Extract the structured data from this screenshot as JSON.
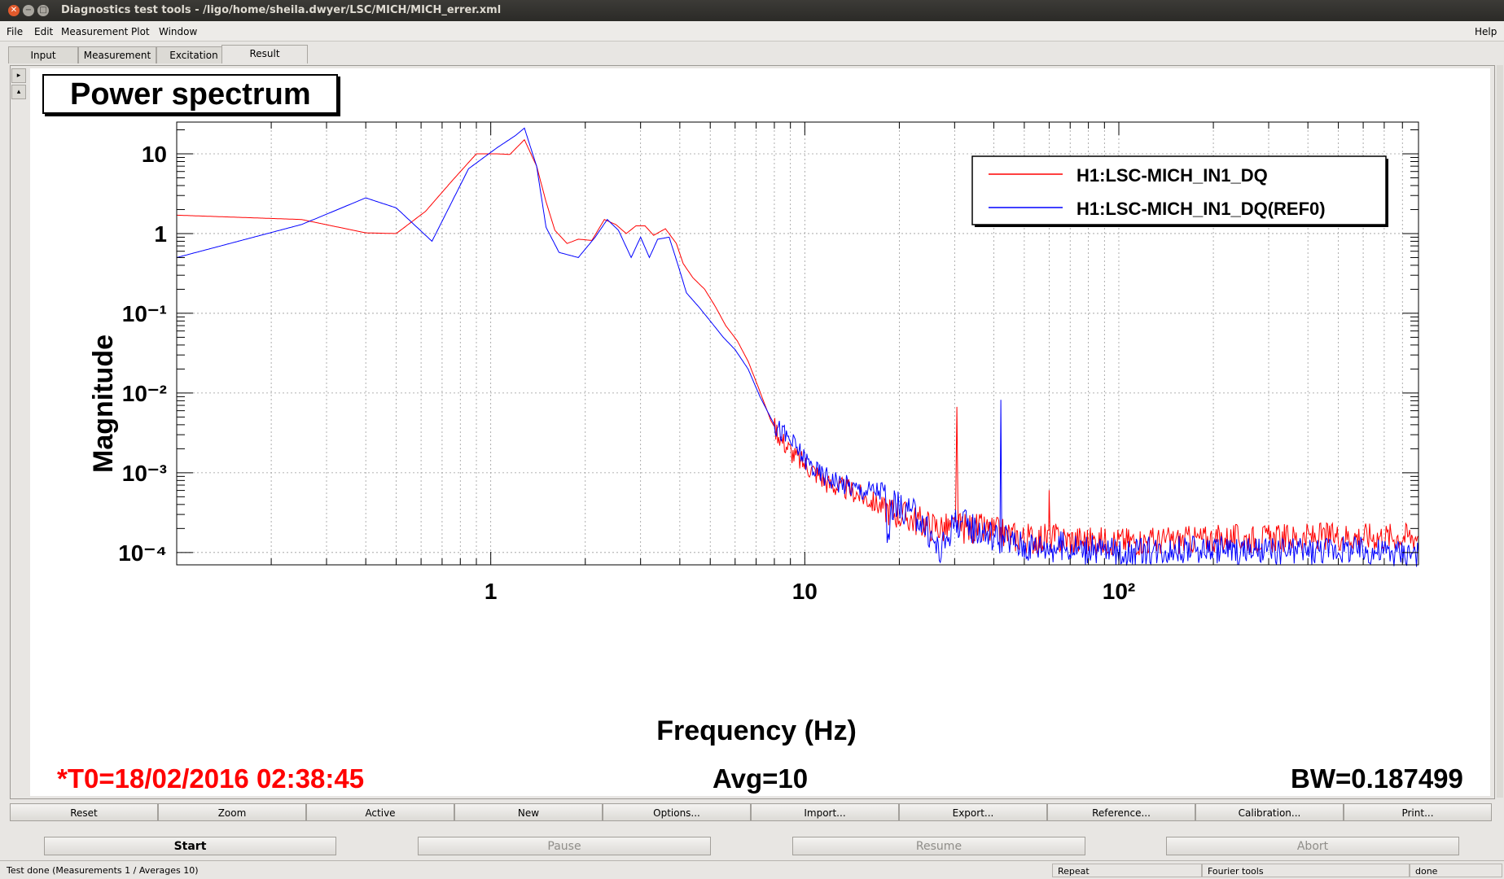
{
  "window": {
    "title": "Diagnostics test tools - /ligo/home/sheila.dwyer/LSC/MICH/MICH_errer.xml"
  },
  "menu": {
    "file": "File",
    "edit": "Edit",
    "measurement": "Measurement",
    "plot": "Plot",
    "window": "Window",
    "help": "Help"
  },
  "tabs": [
    "Input",
    "Measurement",
    "Excitation",
    "Result"
  ],
  "plot_panel": {
    "title": "Power spectrum",
    "footer": {
      "t0": "*T0=18/02/2016 02:38:45",
      "avg": "Avg=10",
      "bw": "BW=0.187499"
    }
  },
  "chart_data": {
    "type": "line",
    "xlabel": "Frequency (Hz)",
    "ylabel": "Magnitude",
    "xscale": "log",
    "yscale": "log",
    "xlim": [
      0.1,
      900
    ],
    "ylim": [
      7e-05,
      25
    ],
    "grid": true,
    "legend_position": "top-right",
    "x_tick_labels": [
      "1",
      "10",
      "10²"
    ],
    "y_tick_labels": [
      "10",
      "1",
      "10⁻¹",
      "10⁻²",
      "10⁻³",
      "10⁻⁴"
    ],
    "series": [
      {
        "name": "H1:LSC-MICH_IN1_DQ",
        "color": "#ff0000",
        "points": [
          [
            0.1,
            1.7
          ],
          [
            0.25,
            1.5
          ],
          [
            0.4,
            1.02
          ],
          [
            0.5,
            1.0
          ],
          [
            0.62,
            1.9
          ],
          [
            0.75,
            4.5
          ],
          [
            0.9,
            10
          ],
          [
            1.05,
            10
          ],
          [
            1.15,
            9.8
          ],
          [
            1.28,
            15
          ],
          [
            1.4,
            7
          ],
          [
            1.5,
            2.5
          ],
          [
            1.6,
            1.1
          ],
          [
            1.75,
            0.75
          ],
          [
            1.9,
            0.85
          ],
          [
            2.1,
            0.82
          ],
          [
            2.3,
            1.5
          ],
          [
            2.5,
            1.3
          ],
          [
            2.7,
            1.0
          ],
          [
            2.9,
            1.25
          ],
          [
            3.1,
            1.25
          ],
          [
            3.3,
            0.95
          ],
          [
            3.6,
            1.15
          ],
          [
            3.9,
            0.75
          ],
          [
            4.1,
            0.42
          ],
          [
            4.4,
            0.28
          ],
          [
            4.8,
            0.2
          ],
          [
            5.2,
            0.12
          ],
          [
            5.6,
            0.07
          ],
          [
            6.1,
            0.045
          ],
          [
            6.6,
            0.025
          ],
          [
            7.1,
            0.012
          ],
          [
            7.8,
            0.0045
          ],
          [
            8.5,
            0.0025
          ],
          [
            9.3,
            0.0016
          ],
          [
            10.5,
            0.0011
          ],
          [
            12,
            0.0007
          ],
          [
            14,
            0.0006
          ],
          [
            17,
            0.0004
          ],
          [
            20,
            0.0003
          ],
          [
            25,
            0.00022
          ],
          [
            28,
            0.0002
          ],
          [
            30.2,
            0.0002
          ],
          [
            30.5,
            0.009
          ],
          [
            30.8,
            0.0002
          ],
          [
            35,
            0.0002
          ],
          [
            40,
            0.00018
          ],
          [
            43,
            0.00017
          ],
          [
            50,
            0.00015
          ],
          [
            59.8,
            0.00015
          ],
          [
            60,
            0.0006
          ],
          [
            60.3,
            0.00015
          ],
          [
            80,
            0.00014
          ],
          [
            100,
            0.00014
          ],
          [
            150,
            0.00014
          ],
          [
            200,
            0.00015
          ],
          [
            300,
            0.00015
          ],
          [
            500,
            0.00016
          ],
          [
            700,
            0.00016
          ],
          [
            900,
            0.00016
          ]
        ]
      },
      {
        "name": "H1:LSC-MICH_IN1_DQ(REF0)",
        "color": "#0000ff",
        "points": [
          [
            0.1,
            0.5
          ],
          [
            0.25,
            1.3
          ],
          [
            0.4,
            2.8
          ],
          [
            0.5,
            2.1
          ],
          [
            0.65,
            0.8
          ],
          [
            0.85,
            6.5
          ],
          [
            1.05,
            12
          ],
          [
            1.2,
            17
          ],
          [
            1.28,
            21
          ],
          [
            1.4,
            7
          ],
          [
            1.5,
            1.2
          ],
          [
            1.65,
            0.58
          ],
          [
            1.9,
            0.5
          ],
          [
            2.15,
            0.9
          ],
          [
            2.35,
            1.5
          ],
          [
            2.55,
            1.1
          ],
          [
            2.8,
            0.5
          ],
          [
            3.0,
            0.9
          ],
          [
            3.2,
            0.5
          ],
          [
            3.4,
            0.85
          ],
          [
            3.7,
            0.9
          ],
          [
            3.95,
            0.4
          ],
          [
            4.2,
            0.18
          ],
          [
            4.6,
            0.12
          ],
          [
            5.0,
            0.08
          ],
          [
            5.5,
            0.05
          ],
          [
            6.0,
            0.035
          ],
          [
            6.6,
            0.02
          ],
          [
            7.2,
            0.009
          ],
          [
            8,
            0.004
          ],
          [
            9,
            0.0025
          ],
          [
            10,
            0.0015
          ],
          [
            11,
            0.001
          ],
          [
            13,
            0.00075
          ],
          [
            15,
            0.0006
          ],
          [
            18,
            0.0006
          ],
          [
            18.3,
            0.00012
          ],
          [
            19,
            0.0004
          ],
          [
            23,
            0.00028
          ],
          [
            27,
            0.0001
          ],
          [
            30,
            0.00025
          ],
          [
            35,
            0.0002
          ],
          [
            41.8,
            0.00015
          ],
          [
            42.1,
            0.006
          ],
          [
            42.4,
            0.00015
          ],
          [
            50,
            0.00012
          ],
          [
            60,
            0.00012
          ],
          [
            80,
            0.00011
          ],
          [
            100,
            0.0001
          ],
          [
            150,
            0.00011
          ],
          [
            200,
            0.00011
          ],
          [
            300,
            0.0001
          ],
          [
            500,
            0.00011
          ],
          [
            700,
            0.0001
          ],
          [
            900,
            0.0001
          ]
        ]
      }
    ]
  },
  "buttons_row1": [
    "Reset",
    "Zoom",
    "Active",
    "New",
    "Options...",
    "Import...",
    "Export...",
    "Reference...",
    "Calibration...",
    "Print..."
  ],
  "buttons_row2": {
    "start": "Start",
    "pause": "Pause",
    "resume": "Resume",
    "abort": "Abort"
  },
  "status": {
    "message": "Test done (Measurements 1 / Averages 10)",
    "repeat": "Repeat",
    "tool": "Fourier tools",
    "state": "done"
  }
}
